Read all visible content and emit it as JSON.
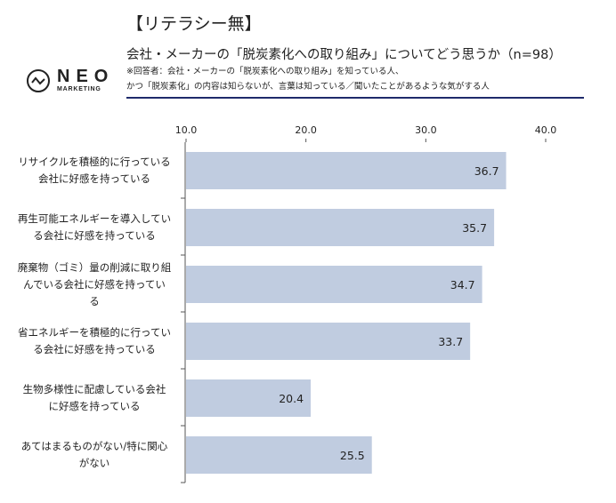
{
  "logo": {
    "name": "NEO",
    "sub": "MARKETING"
  },
  "title": "【リテラシー無】",
  "subtitle": "会社・メーカーの「脱炭素化への取り組み」についてどう思うか（n=98）",
  "notes": [
    "※回答者：会社・メーカーの「脱炭素化への取り組み」を知っている人、",
    "かつ「脱炭素化」の内容は知らないが、言葉は知っている／聞いたことがあるような気がする人"
  ],
  "colors": {
    "bar": "#c0cce0",
    "rule": "#1f2a6b",
    "axis": "#555555"
  },
  "chart_data": {
    "type": "bar",
    "orientation": "horizontal",
    "categories": [
      "リサイクルを積極的に行っている会社に好感を持っている",
      "再生可能エネルギーを導入している会社に好感を持っている",
      "廃棄物（ゴミ）量の削減に取り組んでいる会社に好感を持っている",
      "省エネルギーを積極的に行っている会社に好感を持っている",
      "生物多様性に配慮している会社に好感を持っている",
      "あてはまるものがない/特に関心がない"
    ],
    "category_lines": [
      [
        "リサイクルを積極的に行っている",
        "会社に好感を持っている"
      ],
      [
        "再生可能エネルギーを導入してい",
        "る会社に好感を持っている"
      ],
      [
        "廃棄物（ゴミ）量の削減に取り組",
        "んでいる会社に好感を持ってい",
        "る"
      ],
      [
        "省エネルギーを積極的に行ってい",
        "る会社に好感を持っている"
      ],
      [
        "生物多様性に配慮している会社",
        "に好感を持っている"
      ],
      [
        "あてはまるものがない/特に関心",
        "がない"
      ]
    ],
    "values": [
      36.7,
      35.7,
      34.7,
      33.7,
      20.4,
      25.5
    ],
    "value_labels": [
      "36.7",
      "35.7",
      "34.7",
      "33.7",
      "20.4",
      "25.5"
    ],
    "xlim": [
      10,
      40
    ],
    "xticks": [
      "10.0",
      "20.0",
      "30.0",
      "40.0"
    ],
    "xtick_values": [
      10,
      20,
      30,
      40
    ],
    "xaxis_position": "top",
    "grid": false,
    "title": "【リテラシー無】"
  }
}
